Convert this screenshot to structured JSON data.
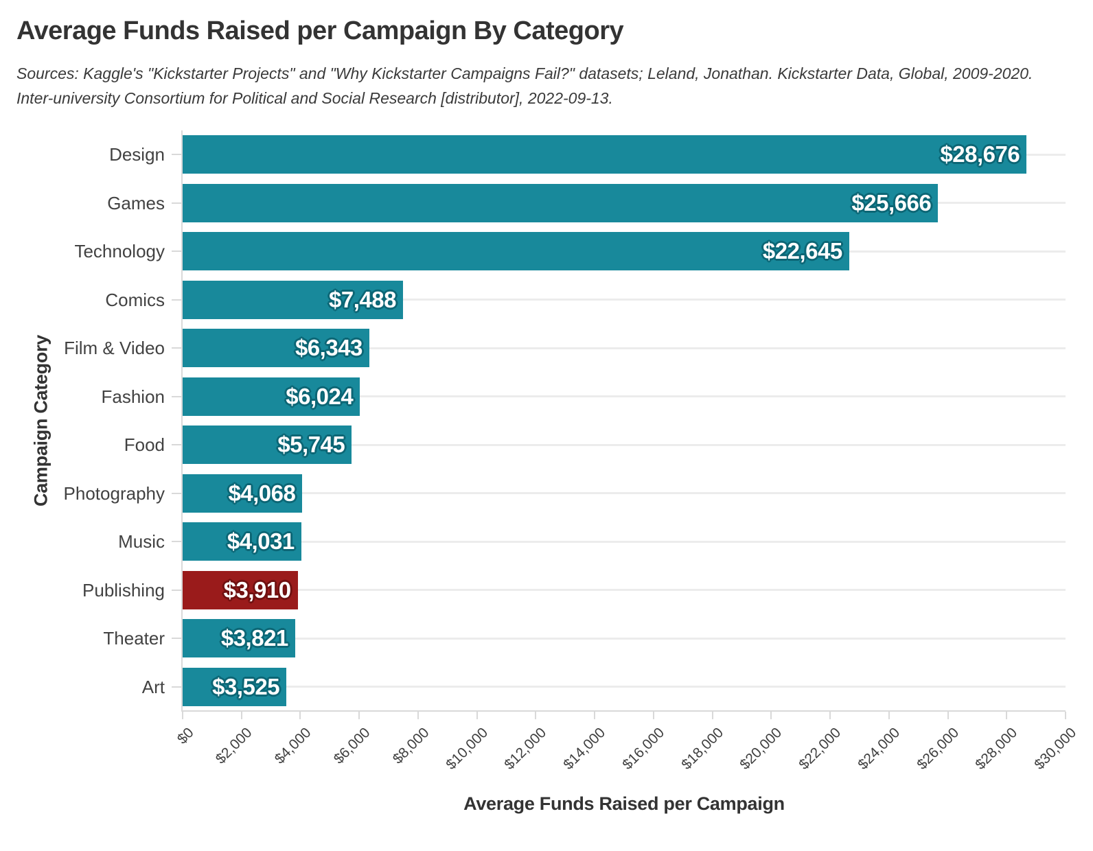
{
  "title": "Average Funds Raised per Campaign By Category",
  "subtitle": "Sources: Kaggle's \"Kickstarter Projects\" and \"Why Kickstarter Campaigns Fail?\" datasets; Leland, Jonathan. Kickstarter Data, Global, 2009-2020. Inter-university Consortium for Political and Social Research [distributor], 2022-09-13.",
  "chart_data": {
    "type": "bar",
    "orientation": "horizontal",
    "title": "Average Funds Raised per Campaign By Category",
    "xlabel": "Average Funds Raised per Campaign",
    "ylabel": "Campaign Category",
    "xlim": [
      0,
      30000
    ],
    "grid": "horizontal-only",
    "legend": "none",
    "categories": [
      "Design",
      "Games",
      "Technology",
      "Comics",
      "Film & Video",
      "Fashion",
      "Food",
      "Photography",
      "Music",
      "Publishing",
      "Theater",
      "Art"
    ],
    "values": [
      28676,
      25666,
      22645,
      7488,
      6343,
      6024,
      5745,
      4068,
      4031,
      3910,
      3821,
      3525
    ],
    "value_labels": [
      "$28,676",
      "$25,666",
      "$22,645",
      "$7,488",
      "$6,343",
      "$6,024",
      "$5,745",
      "$4,068",
      "$4,031",
      "$3,910",
      "$3,821",
      "$3,525"
    ],
    "highlight_category": "Publishing",
    "x_tick_labels": [
      "$0",
      "$2,000",
      "$4,000",
      "$6,000",
      "$8,000",
      "$10,000",
      "$12,000",
      "$14,000",
      "$16,000",
      "$18,000",
      "$20,000",
      "$22,000",
      "$24,000",
      "$26,000",
      "$28,000",
      "$30,000"
    ],
    "colors": {
      "bar": "#18899b",
      "highlight": "#9a1b1b",
      "label_text": "#ffffff",
      "label_outline_bar": "#0c6675",
      "label_outline_highlight": "#701111",
      "gridline": "#ececec",
      "axis_line": "#d9d9d9",
      "axis_text": "#3f3f3f",
      "title_text": "#333333"
    }
  }
}
